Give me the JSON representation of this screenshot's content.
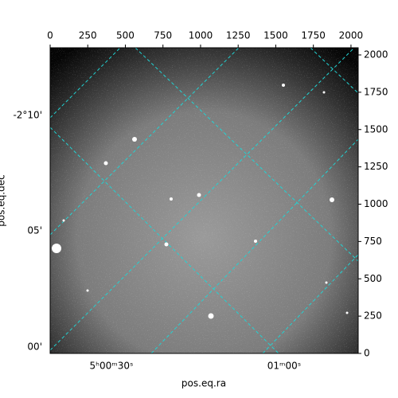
{
  "chart_data": {
    "type": "image",
    "xlim": [
      0,
      2048
    ],
    "ylim": [
      0,
      2048
    ],
    "xticks": [
      0,
      250,
      500,
      750,
      1000,
      1250,
      1500,
      1750,
      2000
    ],
    "yticks": [
      0,
      250,
      500,
      750,
      1000,
      1250,
      1500,
      1750,
      2000
    ],
    "ra_labels": [
      "5ʰ00ᵐ30ˢ",
      "01ᵐ00ˢ"
    ],
    "dec_labels": [
      "-2°10'",
      "05'",
      "00'"
    ],
    "xlabel": "pos.eq.ra",
    "ylabel": "pos.eq.dec"
  }
}
